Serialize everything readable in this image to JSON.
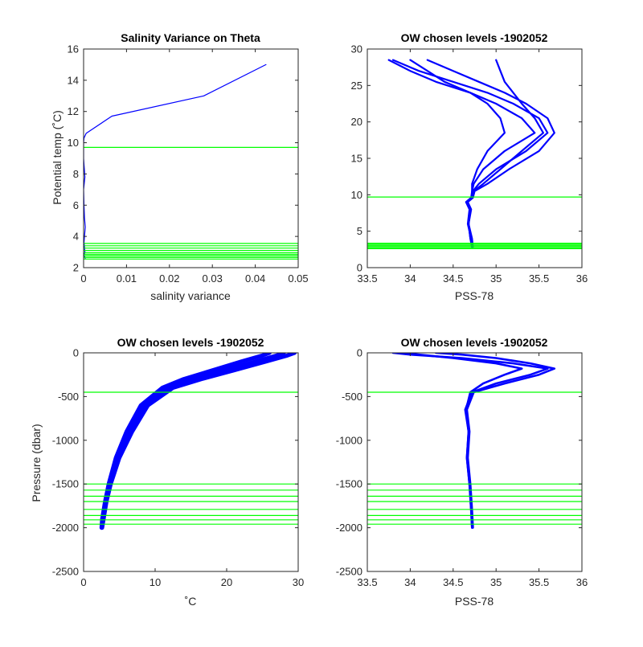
{
  "colors": {
    "profile": "#0000ff",
    "level": "#00ff00",
    "axis": "#262626",
    "background": "#ffffff"
  },
  "chart_data": [
    {
      "id": "tl",
      "type": "line",
      "title": "Salinity Variance on Theta",
      "xlabel": "salinity variance",
      "ylabel": "Potential temp (˚C)",
      "xlim": [
        0,
        0.05
      ],
      "ylim": [
        2,
        16
      ],
      "xticks": [
        0,
        0.01,
        0.02,
        0.03,
        0.04,
        0.05
      ],
      "xtick_labels": [
        "0",
        "0.01",
        "0.02",
        "0.03",
        "0.04",
        "0.05"
      ],
      "yticks": [
        2,
        4,
        6,
        8,
        10,
        12,
        14,
        16
      ],
      "ytick_labels": [
        "2",
        "4",
        "6",
        "8",
        "10",
        "12",
        "14",
        "16"
      ],
      "series": [
        {
          "x": [
            0.0004,
            0.0001,
            0.0003,
            0.0002,
            0.0001,
            0.0002,
            0.0004,
            0.0002,
            0.0001,
            0.0,
            0.0003,
            0.0002,
            0.0001,
            0.0,
            0.0,
            0.0,
            0.0001,
            0.0006,
            0.0066,
            0.028,
            0.0425
          ],
          "y": [
            2.6,
            2.8,
            3.0,
            3.3,
            3.6,
            4.0,
            4.6,
            5.2,
            6.0,
            7.0,
            7.8,
            8.2,
            8.6,
            9.0,
            9.6,
            10.0,
            10.3,
            10.6,
            11.7,
            13.0,
            15.0
          ]
        }
      ],
      "level_lines": [
        2.55,
        2.65,
        2.75,
        2.85,
        2.95,
        3.1,
        3.25,
        3.4,
        3.55,
        9.7
      ]
    },
    {
      "id": "tr",
      "type": "line",
      "title": "OW chosen levels -1902052",
      "xlabel": "PSS-78",
      "ylabel": "",
      "xlim": [
        33.5,
        36
      ],
      "ylim": [
        0,
        30
      ],
      "xticks": [
        33.5,
        34,
        34.5,
        35,
        35.5,
        36
      ],
      "xtick_labels": [
        "33.5",
        "34",
        "34.5",
        "35",
        "35.5",
        "36"
      ],
      "yticks": [
        0,
        5,
        10,
        15,
        20,
        25,
        30
      ],
      "ytick_labels": [
        "0",
        "5",
        "10",
        "15",
        "20",
        "25",
        "30"
      ],
      "series": [
        {
          "x": [
            34.72,
            34.7,
            34.68,
            34.7,
            34.66,
            34.72,
            34.73,
            34.8,
            35.0,
            35.35,
            35.6,
            35.5,
            35.2,
            34.9,
            34.5,
            34.1,
            33.8
          ],
          "y": [
            2.8,
            4.0,
            6.0,
            8.0,
            9.0,
            9.6,
            10.5,
            11.5,
            13.5,
            16.0,
            18.5,
            20.5,
            22.5,
            24.0,
            25.5,
            27.0,
            28.5
          ]
        },
        {
          "x": [
            34.72,
            34.71,
            34.67,
            34.69,
            34.65,
            34.71,
            34.72,
            34.74,
            34.85,
            35.1,
            35.45,
            35.3,
            35.0,
            34.7,
            34.3,
            34.0,
            33.75
          ],
          "y": [
            2.8,
            4.0,
            6.0,
            8.0,
            9.0,
            9.6,
            10.5,
            11.5,
            13.5,
            16.0,
            18.5,
            20.5,
            22.5,
            24.0,
            25.5,
            27.0,
            28.5
          ]
        },
        {
          "x": [
            34.73,
            34.72,
            34.68,
            34.71,
            34.67,
            34.73,
            34.75,
            34.9,
            35.15,
            35.5,
            35.68,
            35.6,
            35.35,
            35.1,
            34.8,
            34.5,
            34.2
          ],
          "y": [
            2.8,
            4.0,
            6.0,
            8.0,
            9.0,
            9.6,
            10.5,
            11.5,
            13.5,
            16.0,
            18.5,
            20.5,
            22.5,
            24.0,
            25.5,
            27.0,
            28.5
          ]
        },
        {
          "x": [
            34.72,
            34.7,
            34.68,
            34.7,
            34.66,
            34.72,
            34.72,
            34.72,
            34.78,
            34.9,
            35.1,
            35.05,
            34.9,
            34.7,
            34.4,
            34.2,
            34.0
          ],
          "y": [
            2.8,
            4.0,
            6.0,
            8.0,
            9.0,
            9.6,
            10.5,
            11.5,
            13.5,
            16.0,
            18.5,
            20.5,
            22.5,
            24.0,
            25.5,
            27.0,
            28.5
          ]
        },
        {
          "x": [
            34.72,
            34.71,
            34.68,
            34.7,
            34.66,
            34.72,
            34.74,
            34.85,
            35.05,
            35.3,
            35.55,
            35.45,
            35.3,
            35.2,
            35.1,
            35.05,
            35.0
          ],
          "y": [
            2.8,
            4.0,
            6.0,
            8.0,
            9.0,
            9.6,
            10.5,
            11.5,
            13.5,
            16.0,
            18.5,
            20.5,
            22.5,
            24.0,
            25.5,
            27.0,
            28.5
          ]
        }
      ],
      "level_lines": [
        2.6,
        2.75,
        2.9,
        3.05,
        3.2,
        3.35,
        9.7
      ]
    },
    {
      "id": "bl",
      "type": "line",
      "title": "OW chosen levels -1902052",
      "xlabel": "˚C",
      "ylabel": "Pressure (dbar)",
      "xlim": [
        0,
        30
      ],
      "ylim": [
        -2500,
        0
      ],
      "xticks": [
        0,
        10,
        20,
        30
      ],
      "xtick_labels": [
        "0",
        "10",
        "20",
        "30"
      ],
      "yticks": [
        -2500,
        -2000,
        -1500,
        -1000,
        -500,
        0
      ],
      "ytick_labels": [
        "-2500",
        "-2000",
        "-1500",
        "-1000",
        "-500",
        "0"
      ],
      "series": [
        {
          "x": [
            2.5,
            2.6,
            3.0,
            3.5,
            4.5,
            6.0,
            8.0,
            11.0,
            14.0,
            18.0,
            22.0,
            25.0,
            26.0
          ],
          "y": [
            -2000,
            -1900,
            -1700,
            -1500,
            -1200,
            -900,
            -600,
            -400,
            -300,
            -200,
            -100,
            -30,
            0
          ]
        },
        {
          "x": [
            2.6,
            2.8,
            3.2,
            3.8,
            5.0,
            6.8,
            9.0,
            12.5,
            16.5,
            21.0,
            25.5,
            28.5,
            29.5
          ],
          "y": [
            -2000,
            -1900,
            -1700,
            -1500,
            -1200,
            -900,
            -600,
            -400,
            -300,
            -200,
            -100,
            -30,
            0
          ]
        },
        {
          "x": [
            2.55,
            2.7,
            3.1,
            3.6,
            4.7,
            6.4,
            8.5,
            11.8,
            15.2,
            19.5,
            24.0,
            27.0,
            28.0
          ],
          "y": [
            -2000,
            -1900,
            -1700,
            -1500,
            -1200,
            -900,
            -600,
            -400,
            -300,
            -200,
            -100,
            -30,
            0
          ]
        }
      ],
      "level_lines": [
        -1500,
        -1570,
        -1640,
        -1700,
        -1790,
        -1860,
        -1910,
        -1960,
        -450
      ]
    },
    {
      "id": "br",
      "type": "line",
      "title": "OW chosen levels -1902052",
      "xlabel": "PSS-78",
      "ylabel": "",
      "xlim": [
        33.5,
        36
      ],
      "ylim": [
        -2500,
        0
      ],
      "xticks": [
        33.5,
        34,
        34.5,
        35,
        35.5,
        36
      ],
      "xtick_labels": [
        "33.5",
        "34",
        "34.5",
        "35",
        "35.5",
        "36"
      ],
      "yticks": [
        -2500,
        -2000,
        -1500,
        -1000,
        -500,
        0
      ],
      "ytick_labels": [
        "-2500",
        "-2000",
        "-1500",
        "-1000",
        "-500",
        "0"
      ],
      "series": [
        {
          "x": [
            34.72,
            34.71,
            34.69,
            34.66,
            34.68,
            34.64,
            34.72,
            35.0,
            35.4,
            35.6,
            35.2,
            34.6,
            34.0,
            33.8
          ],
          "y": [
            -2000,
            -1800,
            -1500,
            -1200,
            -900,
            -650,
            -450,
            -350,
            -250,
            -180,
            -120,
            -60,
            -20,
            0
          ]
        },
        {
          "x": [
            34.73,
            34.72,
            34.7,
            34.67,
            34.69,
            34.66,
            34.74,
            35.1,
            35.5,
            35.68,
            35.4,
            35.0,
            34.6,
            34.3
          ],
          "y": [
            -2000,
            -1800,
            -1500,
            -1200,
            -900,
            -650,
            -450,
            -350,
            -250,
            -180,
            -120,
            -60,
            -20,
            0
          ]
        },
        {
          "x": [
            34.72,
            34.71,
            34.69,
            34.66,
            34.68,
            34.65,
            34.7,
            34.85,
            35.1,
            35.3,
            35.0,
            34.5,
            34.1,
            33.9
          ],
          "y": [
            -2000,
            -1800,
            -1500,
            -1200,
            -900,
            -650,
            -450,
            -350,
            -250,
            -180,
            -120,
            -60,
            -20,
            0
          ]
        }
      ],
      "level_lines": [
        -1500,
        -1570,
        -1640,
        -1700,
        -1790,
        -1860,
        -1910,
        -1960,
        -450
      ]
    }
  ]
}
